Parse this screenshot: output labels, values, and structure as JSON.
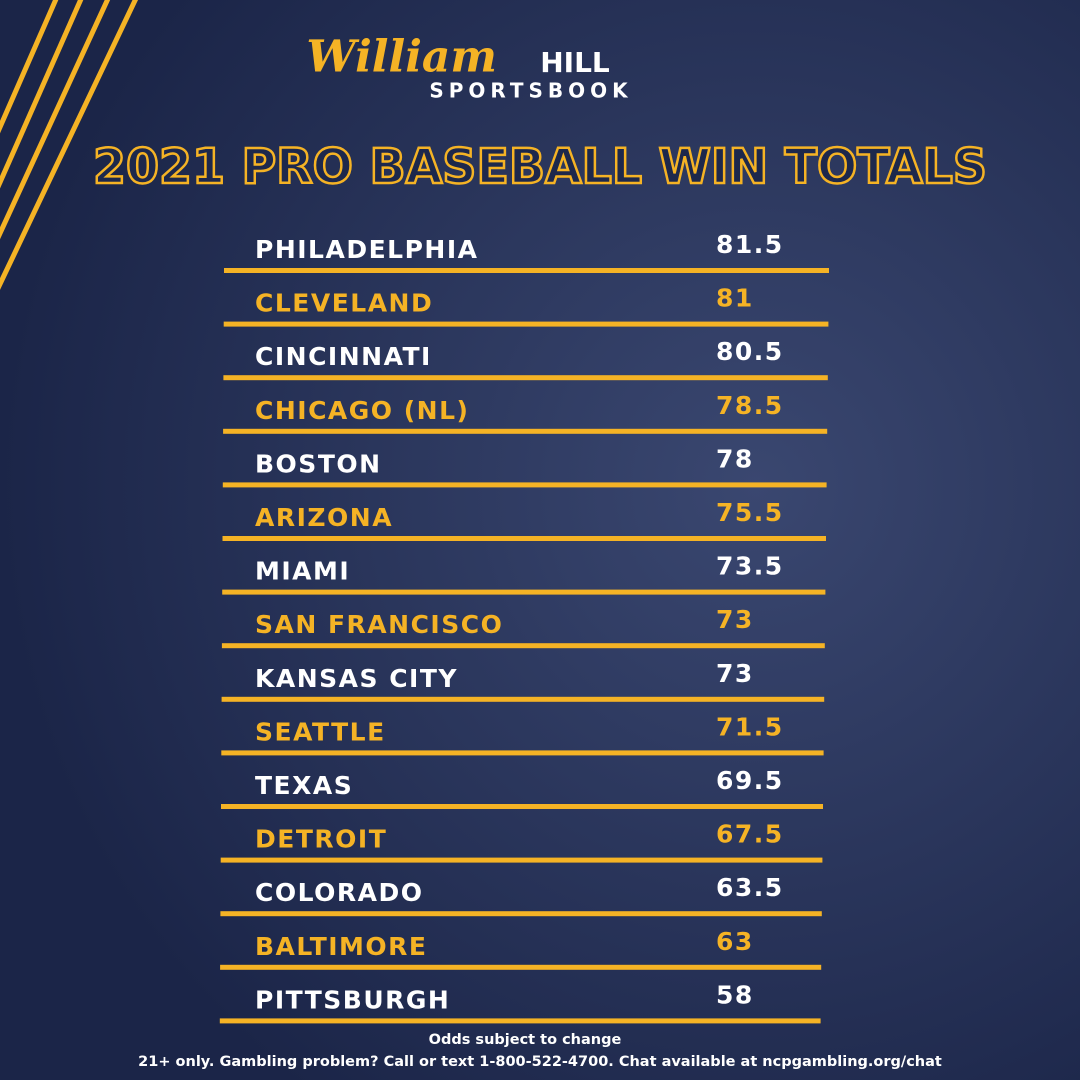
{
  "header": {
    "brand": "William",
    "brand_bold": "HILL",
    "subbrand": "SPORTSBOOK"
  },
  "title": "2021 PRO BASEBALL WIN TOTALS",
  "table": {
    "rows": [
      [
        "PHILADELPHIA",
        81.5
      ],
      [
        "CLEVELAND",
        81
      ],
      [
        "CINCINNATI",
        80.5
      ],
      [
        "CHICAGO (NL)",
        78.5
      ],
      [
        "BOSTON",
        78
      ],
      [
        "ARIZONA",
        75.5
      ],
      [
        "MIAMI",
        73.5
      ],
      [
        "SAN FRANCISCO",
        73
      ],
      [
        "KANSAS CITY",
        73
      ],
      [
        "SEATTLE",
        71.5
      ],
      [
        "TEXAS",
        69.5
      ],
      [
        "DETROIT",
        67.5
      ],
      [
        "COLORADO",
        63.5
      ],
      [
        "BALTIMORE",
        63
      ],
      [
        "PITTSBURGH",
        58
      ]
    ]
  },
  "footer": {
    "note": "Odds subject to change",
    "disclaimer": "21+ only. Gambling problem? Call or text 1-800-522-4700. Chat available at ncpgambling.org/chat"
  }
}
